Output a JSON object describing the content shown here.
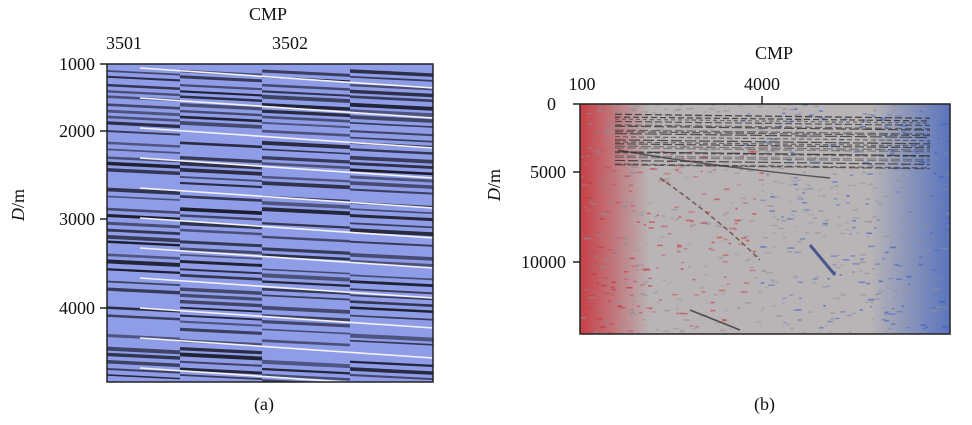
{
  "panels": [
    {
      "id": "a",
      "caption": "(a)",
      "top_axis_title": "CMP",
      "top_ticks": [
        "3501",
        "3502"
      ],
      "y_label_italic": "D",
      "y_label_unit": "/m",
      "y_ticks": [
        "1000",
        "2000",
        "3000",
        "4000"
      ],
      "colors": {
        "background": "#8f9ce8",
        "event": "#1b1c2a",
        "white_line": "#f2f2f2"
      }
    },
    {
      "id": "b",
      "caption": "(b)",
      "top_axis_title": "CMP",
      "top_ticks": [
        "100",
        "4000"
      ],
      "y_label_italic": "D",
      "y_label_unit": "/m",
      "y_ticks": [
        "0",
        "5000",
        "10000"
      ],
      "colors": {
        "background": "#b9b4b6",
        "red": "#c8323a",
        "blue": "#3a5fc0",
        "event": "#2b2b2b"
      }
    }
  ]
}
